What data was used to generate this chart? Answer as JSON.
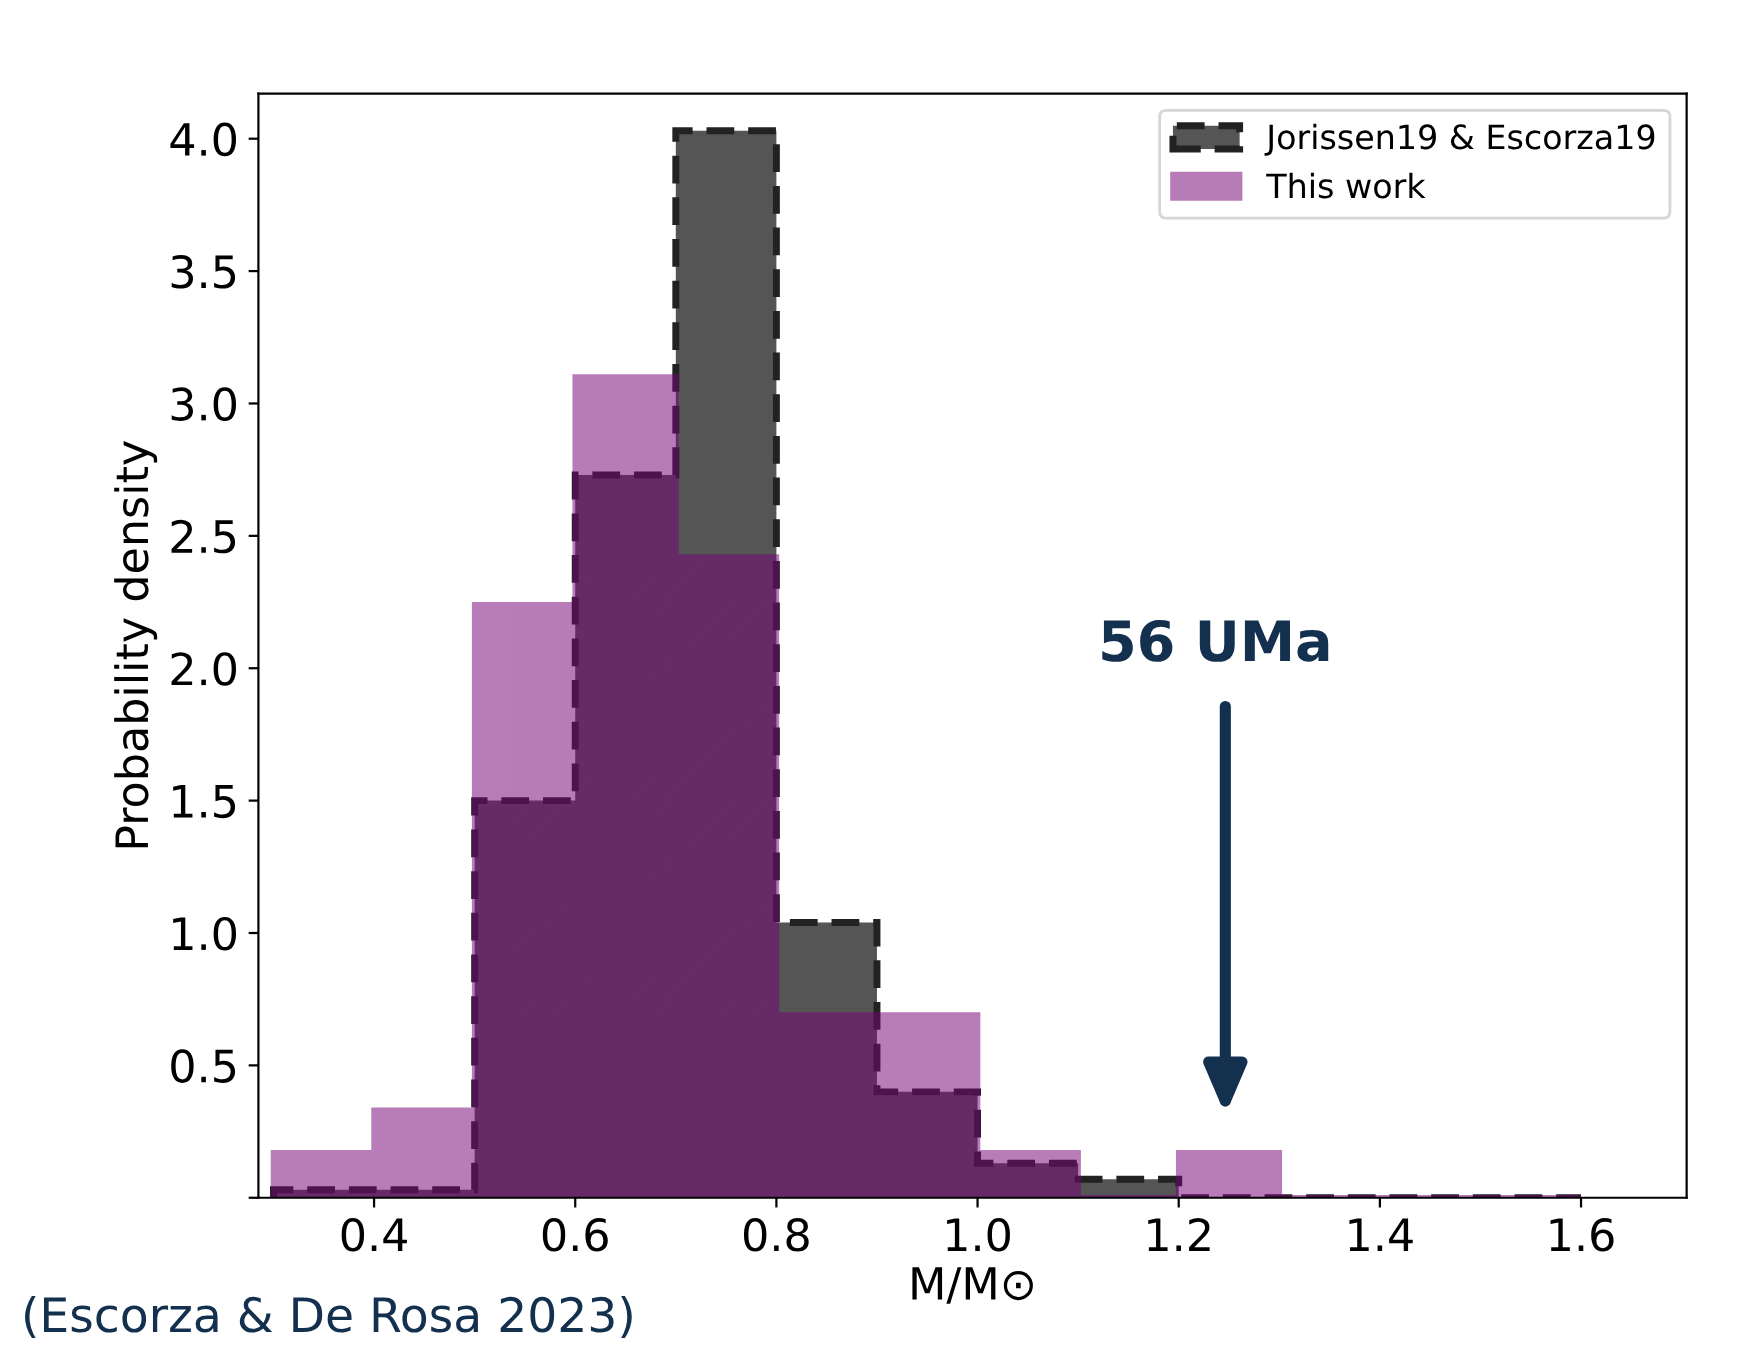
{
  "chart_data": {
    "type": "histogram",
    "xlabel": "M/M⊙",
    "ylabel": "Probability density",
    "bins": [
      0.3,
      0.4,
      0.5,
      0.6,
      0.7,
      0.8,
      0.9,
      1.0,
      1.1,
      1.2,
      1.3,
      1.4,
      1.5,
      1.6
    ],
    "series": [
      {
        "name": "Jorissen19 & Escorza19",
        "color": "#555555",
        "line_style": "dashed",
        "values": [
          0.03,
          0.03,
          1.5,
          2.73,
          4.03,
          1.04,
          0.4,
          0.13,
          0.07,
          0,
          0,
          0,
          0
        ]
      },
      {
        "name": "This work",
        "color": "#770477",
        "line_style": "solid",
        "values": [
          0.17,
          0.33,
          2.24,
          3.1,
          2.42,
          0.69,
          0.69,
          0.17,
          0,
          0.17,
          0,
          0,
          0
        ]
      }
    ],
    "xlim": [
      0.285,
      1.705
    ],
    "ylim": [
      0,
      4.17
    ],
    "xticks": [
      0.4,
      0.6,
      0.8,
      {
        "value": 1,
        "label": "1.0"
      },
      1.2,
      1.4,
      1.6
    ],
    "yticks": [
      {
        "value": 0,
        "label": null
      },
      0.5,
      {
        "value": 1,
        "label": "1.0"
      },
      1.5,
      {
        "value": 2,
        "label": "2.0"
      },
      2.5,
      {
        "value": 3,
        "label": "3.0"
      },
      3.5,
      {
        "value": 4,
        "label": "4.0"
      }
    ],
    "legend": "top right",
    "grid": false,
    "annotations": [
      "56 UMa",
      "(Escorza & De Rosa 2023)"
    ]
  }
}
